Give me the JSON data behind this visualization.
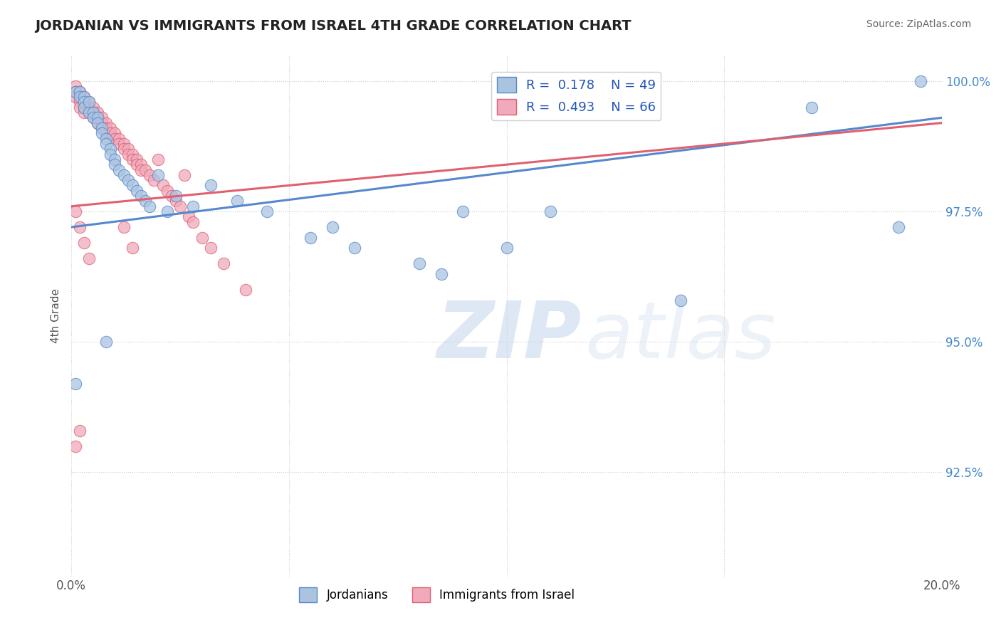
{
  "title": "JORDANIAN VS IMMIGRANTS FROM ISRAEL 4TH GRADE CORRELATION CHART",
  "source": "Source: ZipAtlas.com",
  "ylabel": "4th Grade",
  "xlim": [
    0.0,
    0.2
  ],
  "ylim": [
    0.905,
    1.005
  ],
  "xticks": [
    0.0,
    0.05,
    0.1,
    0.15,
    0.2
  ],
  "xtick_labels": [
    "0.0%",
    "",
    "",
    "",
    "20.0%"
  ],
  "ytick_labels": [
    "92.5%",
    "95.0%",
    "97.5%",
    "100.0%"
  ],
  "yticks": [
    0.925,
    0.95,
    0.975,
    1.0
  ],
  "legend_labels": [
    "Jordanians",
    "Immigrants from Israel"
  ],
  "r_blue": 0.178,
  "n_blue": 49,
  "r_pink": 0.493,
  "n_pink": 66,
  "blue_color": "#aac4e0",
  "pink_color": "#f0aabb",
  "blue_line_color": "#5588cc",
  "pink_line_color": "#e06070",
  "watermark_zip": "ZIP",
  "watermark_atlas": "atlas",
  "blue_scatter_x": [
    0.001,
    0.002,
    0.002,
    0.003,
    0.003,
    0.003,
    0.004,
    0.004,
    0.005,
    0.005,
    0.006,
    0.006,
    0.007,
    0.007,
    0.008,
    0.008,
    0.009,
    0.009,
    0.01,
    0.01,
    0.011,
    0.012,
    0.013,
    0.014,
    0.015,
    0.016,
    0.017,
    0.018,
    0.02,
    0.022,
    0.024,
    0.028,
    0.032,
    0.038,
    0.045,
    0.055,
    0.06,
    0.065,
    0.08,
    0.085,
    0.09,
    0.1,
    0.11,
    0.14,
    0.17,
    0.19,
    0.195,
    0.008,
    0.001
  ],
  "blue_scatter_y": [
    0.998,
    0.998,
    0.997,
    0.997,
    0.996,
    0.995,
    0.996,
    0.994,
    0.994,
    0.993,
    0.993,
    0.992,
    0.991,
    0.99,
    0.989,
    0.988,
    0.987,
    0.986,
    0.985,
    0.984,
    0.983,
    0.982,
    0.981,
    0.98,
    0.979,
    0.978,
    0.977,
    0.976,
    0.982,
    0.975,
    0.978,
    0.976,
    0.98,
    0.977,
    0.975,
    0.97,
    0.972,
    0.968,
    0.965,
    0.963,
    0.975,
    0.968,
    0.975,
    0.958,
    0.995,
    0.972,
    1.0,
    0.95,
    0.942
  ],
  "pink_scatter_x": [
    0.001,
    0.001,
    0.001,
    0.002,
    0.002,
    0.002,
    0.002,
    0.003,
    0.003,
    0.003,
    0.003,
    0.004,
    0.004,
    0.004,
    0.005,
    0.005,
    0.005,
    0.006,
    0.006,
    0.006,
    0.007,
    0.007,
    0.007,
    0.008,
    0.008,
    0.008,
    0.009,
    0.009,
    0.01,
    0.01,
    0.011,
    0.011,
    0.012,
    0.012,
    0.013,
    0.013,
    0.014,
    0.014,
    0.015,
    0.015,
    0.016,
    0.016,
    0.017,
    0.018,
    0.019,
    0.02,
    0.021,
    0.022,
    0.023,
    0.024,
    0.025,
    0.026,
    0.027,
    0.028,
    0.03,
    0.032,
    0.035,
    0.04,
    0.001,
    0.002,
    0.003,
    0.004,
    0.012,
    0.014,
    0.001,
    0.002
  ],
  "pink_scatter_y": [
    0.999,
    0.998,
    0.997,
    0.998,
    0.997,
    0.996,
    0.995,
    0.997,
    0.996,
    0.995,
    0.994,
    0.996,
    0.995,
    0.994,
    0.995,
    0.994,
    0.993,
    0.994,
    0.993,
    0.992,
    0.993,
    0.992,
    0.991,
    0.992,
    0.991,
    0.99,
    0.991,
    0.99,
    0.99,
    0.989,
    0.989,
    0.988,
    0.988,
    0.987,
    0.987,
    0.986,
    0.986,
    0.985,
    0.985,
    0.984,
    0.984,
    0.983,
    0.983,
    0.982,
    0.981,
    0.985,
    0.98,
    0.979,
    0.978,
    0.977,
    0.976,
    0.982,
    0.974,
    0.973,
    0.97,
    0.968,
    0.965,
    0.96,
    0.975,
    0.972,
    0.969,
    0.966,
    0.972,
    0.968,
    0.93,
    0.933
  ],
  "blue_trend_x": [
    0.0,
    0.2
  ],
  "blue_trend_y": [
    0.972,
    0.993
  ],
  "pink_trend_x": [
    0.0,
    0.2
  ],
  "pink_trend_y": [
    0.976,
    0.992
  ]
}
